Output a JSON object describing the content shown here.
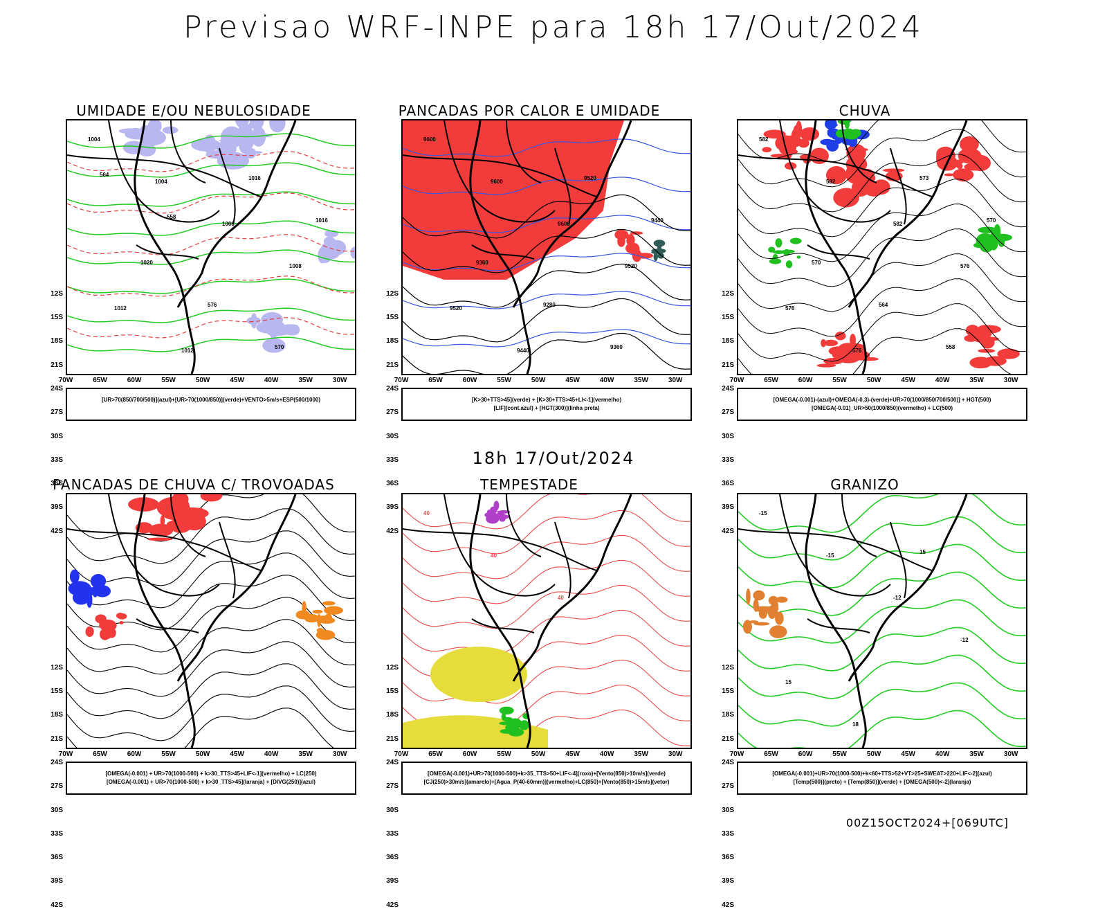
{
  "title": "Previsao WRF-INPE  para 18h 17/Out/2024",
  "mid_title": "18h 17/Out/2024",
  "footer": "00Z15OCT2024+[069UTC]",
  "axes": {
    "lat_labels": [
      "12S",
      "15S",
      "18S",
      "21S",
      "24S",
      "27S",
      "30S",
      "33S",
      "36S",
      "39S",
      "42S"
    ],
    "lon_labels": [
      "70W",
      "65W",
      "60W",
      "55W",
      "50W",
      "45W",
      "40W",
      "35W",
      "30W"
    ]
  },
  "panels": [
    {
      "title": "UMIDADE E/OU NEBULOSIDADE",
      "legend": [
        "[UR>70(850/700/500)](azul)+[UR>70(1000/850)](verde)+VENTO>5m/s+ESP(500/1000)"
      ],
      "contour_labels": [
        "1004",
        "1004",
        "1008",
        "1008",
        "1012",
        "1012",
        "1016",
        "1016",
        "1020",
        "576",
        "570",
        "564",
        "558"
      ]
    },
    {
      "title": "PANCADAS POR CALOR E UMIDADE",
      "legend": [
        "[K>30+TTS>45](verde) + [K>30+TTS>45+LI<-1](vermelho)",
        "[LIF](cont.azul) + [HGT(300)](linha preta)"
      ],
      "contour_labels": [
        "9600",
        "9600",
        "9600",
        "9520",
        "9520",
        "9440",
        "9520",
        "9440",
        "9360",
        "9280",
        "9360"
      ]
    },
    {
      "title": "CHUVA",
      "legend": [
        "[OMEGA(-0.001)-(azul)+OMEGA(-0.3)-(verde)+UR>70(1000/850/700/500)] + HGT(500)",
        "[OMEGA(-0.01)_UR>50(1000/850)(vermelho) + LC(500)"
      ],
      "contour_labels": [
        "582",
        "582",
        "582",
        "576",
        "576",
        "576",
        "573",
        "570",
        "570",
        "564",
        "558"
      ]
    },
    {
      "title": "PANCADAS DE CHUVA C/ TROVOADAS",
      "legend": [
        "[OMEGA(-0.001) + UR>70(1000-500) + k>30_TTS>45+LIF<-1](vermelho) + LC(250)",
        "[OMEGA(-0.001) + UR>70(1000-500) + k>30_TTS>45](laranja) + [DIVG(250)](azul)"
      ],
      "contour_labels": []
    },
    {
      "title": "TEMPESTADE",
      "legend": [
        "[OMEGA(-0.001)+UR>70(1000-500)+k>35_TTS>50+LIF<-4](roxo)+[Vento(850)>10m/s](verde)",
        "[CJ(250)>30m/s](amarelo)+[Agua_P(40-60mm)](vermelho)+LC(850)+[Vento(850)>15m/s](vetor)"
      ],
      "contour_labels": [
        "40",
        "40",
        "40"
      ]
    },
    {
      "title": "GRANIZO",
      "legend": [
        "[OMEGA(-0.001)+UR>70(1000-500)+k<60+TTS>52+VT>25+SWEAT>220+LIF<-2](azul)",
        "[Temp(500)](preto) + [Temp(850)](verde) + [OMEGA(500)<-2](laranja)"
      ],
      "contour_labels": [
        "-15",
        "-15",
        "-12",
        "-12",
        "15",
        "18",
        "15"
      ]
    }
  ]
}
